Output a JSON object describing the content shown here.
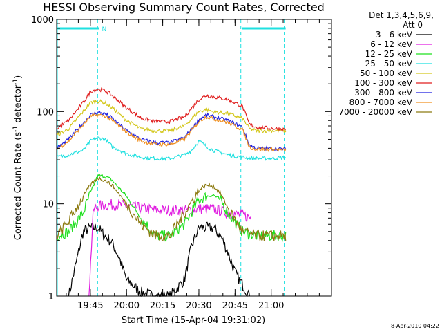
{
  "chart_data": {
    "type": "line",
    "title": "HESSI Observing Summary Count Rates, Corrected",
    "xlabel": "Start Time (15-Apr-04 19:31:02)",
    "ylabel": "Corrected Count Rate (s",
    "ylabel_sup1": "-1",
    "ylabel_mid": " detector",
    "ylabel_sup2": "-1",
    "ylabel_end": ")",
    "y_scale": "log",
    "ylim": [
      1,
      1000
    ],
    "xlim_minutes": [
      19.5167,
      21.4167
    ],
    "x_ticks": [
      {
        "label": "19:45",
        "value": 19.75
      },
      {
        "label": "20:00",
        "value": 20.0
      },
      {
        "label": "20:15",
        "value": 20.25
      },
      {
        "label": "20:30",
        "value": 20.5
      },
      {
        "label": "20:45",
        "value": 20.75
      },
      {
        "label": "21:00",
        "value": 21.0
      }
    ],
    "y_ticks": [
      {
        "label": "1",
        "value": 1
      },
      {
        "label": "10",
        "value": 10
      },
      {
        "label": "100",
        "value": 100
      },
      {
        "label": "1000",
        "value": 1000
      }
    ],
    "legend": {
      "header_line1": "Det 1,3,4,5,6,9,",
      "header_line2": "Att 0",
      "placement": "right"
    },
    "flag_bars": [
      {
        "start": 19.5167,
        "end": 19.81,
        "label": "N"
      },
      {
        "start": 20.8,
        "end": 21.1,
        "label": ""
      }
    ],
    "markers": [
      19.8,
      20.79,
      21.09
    ],
    "timestamp": "8-Apr-2010 04:22",
    "series": [
      {
        "name": "3 - 6 keV",
        "color": "#000000",
        "x": [
          19.6,
          19.7,
          19.75,
          19.8,
          19.85,
          19.9,
          19.95,
          20.0,
          20.1,
          20.2,
          20.3,
          20.4,
          20.45,
          20.5,
          20.55,
          20.6,
          20.65,
          20.7,
          20.75,
          20.85
        ],
        "y": [
          1.0,
          5,
          5.5,
          5.5,
          4.5,
          3.8,
          2.6,
          1.5,
          1.1,
          1.0,
          1.0,
          1.5,
          3.5,
          5.5,
          5.5,
          5.5,
          4.5,
          3.0,
          1.8,
          1.0
        ]
      },
      {
        "name": "6 - 12 keV",
        "color": "#e01fe0",
        "x": [
          19.74,
          19.77,
          19.8,
          19.9,
          20.0,
          20.1,
          20.2,
          20.3,
          20.4,
          20.5,
          20.6,
          20.7,
          20.8,
          20.86
        ],
        "y": [
          1.0,
          8.5,
          9.5,
          9.8,
          9.5,
          9.0,
          8.5,
          8.5,
          8.5,
          8.8,
          8.8,
          8.0,
          7.5,
          7.0
        ]
      },
      {
        "name": "12 - 25 keV",
        "color": "#1fe01f",
        "x": [
          19.5167,
          19.6,
          19.7,
          19.75,
          19.8,
          19.85,
          19.9,
          20.0,
          20.1,
          20.2,
          20.3,
          20.4,
          20.5,
          20.55,
          20.6,
          20.65,
          20.7,
          20.8,
          20.9,
          21.0,
          21.1
        ],
        "y": [
          4.5,
          5.0,
          8.0,
          13,
          20,
          20,
          18,
          12,
          7,
          4.5,
          4.5,
          6,
          11,
          12,
          12.5,
          11,
          8,
          5,
          4.5,
          4.5,
          4.5
        ]
      },
      {
        "name": "25 - 50 keV",
        "color": "#1fe0e0",
        "x": [
          19.5167,
          19.6,
          19.7,
          19.75,
          19.8,
          19.85,
          19.9,
          20.0,
          20.1,
          20.2,
          20.3,
          20.4,
          20.45,
          20.5,
          20.55,
          20.6,
          20.7,
          20.8,
          20.9,
          21.0,
          21.1
        ],
        "y": [
          32,
          34,
          38,
          48,
          52,
          50,
          42,
          35,
          32,
          31,
          31,
          34,
          38,
          48,
          42,
          38,
          34,
          32,
          31,
          31,
          32
        ]
      },
      {
        "name": "50 - 100 keV",
        "color": "#d4c81f",
        "x": [
          19.5167,
          19.6,
          19.7,
          19.75,
          19.8,
          19.85,
          19.9,
          20.0,
          20.1,
          20.2,
          20.3,
          20.4,
          20.5,
          20.55,
          20.6,
          20.7,
          20.8,
          20.85,
          20.9,
          21.0,
          21.1
        ],
        "y": [
          55,
          65,
          100,
          125,
          130,
          125,
          110,
          80,
          65,
          62,
          62,
          70,
          100,
          105,
          100,
          95,
          85,
          65,
          62,
          62,
          62
        ]
      },
      {
        "name": "100 - 300 keV",
        "color": "#e01f1f",
        "x": [
          19.5167,
          19.6,
          19.7,
          19.75,
          19.8,
          19.85,
          19.9,
          20.0,
          20.1,
          20.2,
          20.3,
          20.4,
          20.5,
          20.55,
          20.6,
          20.7,
          20.8,
          20.85,
          20.9,
          21.0,
          21.1
        ],
        "y": [
          65,
          80,
          125,
          165,
          175,
          170,
          150,
          110,
          85,
          78,
          78,
          88,
          135,
          150,
          145,
          135,
          115,
          72,
          68,
          66,
          64
        ]
      },
      {
        "name": "300 - 800 keV",
        "color": "#1f1fe0",
        "x": [
          19.5167,
          19.6,
          19.7,
          19.75,
          19.8,
          19.85,
          19.9,
          20.0,
          20.1,
          20.2,
          20.3,
          20.4,
          20.5,
          20.55,
          20.6,
          20.7,
          20.8,
          20.85,
          20.9,
          21.0,
          21.1
        ],
        "y": [
          40,
          50,
          75,
          92,
          98,
          95,
          85,
          62,
          50,
          46,
          46,
          52,
          82,
          92,
          88,
          80,
          68,
          43,
          40,
          40,
          39
        ]
      },
      {
        "name": "800 - 7000 keV",
        "color": "#f09020",
        "x": [
          19.5167,
          19.6,
          19.7,
          19.75,
          19.8,
          19.85,
          19.9,
          20.0,
          20.1,
          20.2,
          20.3,
          20.4,
          20.5,
          20.55,
          20.6,
          20.7,
          20.8,
          20.85,
          20.9,
          21.0,
          21.1
        ],
        "y": [
          39,
          48,
          72,
          88,
          92,
          90,
          80,
          60,
          48,
          44,
          44,
          50,
          78,
          88,
          84,
          76,
          64,
          41,
          39,
          39,
          38
        ]
      },
      {
        "name": "7000 - 20000 keV",
        "color": "#8c7a10",
        "x": [
          19.5167,
          19.6,
          19.7,
          19.75,
          19.8,
          19.85,
          19.9,
          20.0,
          20.1,
          20.2,
          20.3,
          20.4,
          20.5,
          20.55,
          20.6,
          20.65,
          20.7,
          20.8,
          20.9,
          21.0,
          21.1
        ],
        "y": [
          4.5,
          6.5,
          12,
          16,
          19,
          18,
          16,
          10,
          6,
          4.5,
          4.5,
          8,
          14,
          16,
          15.5,
          13,
          9,
          5,
          4.5,
          4.5,
          4.5
        ]
      }
    ]
  }
}
